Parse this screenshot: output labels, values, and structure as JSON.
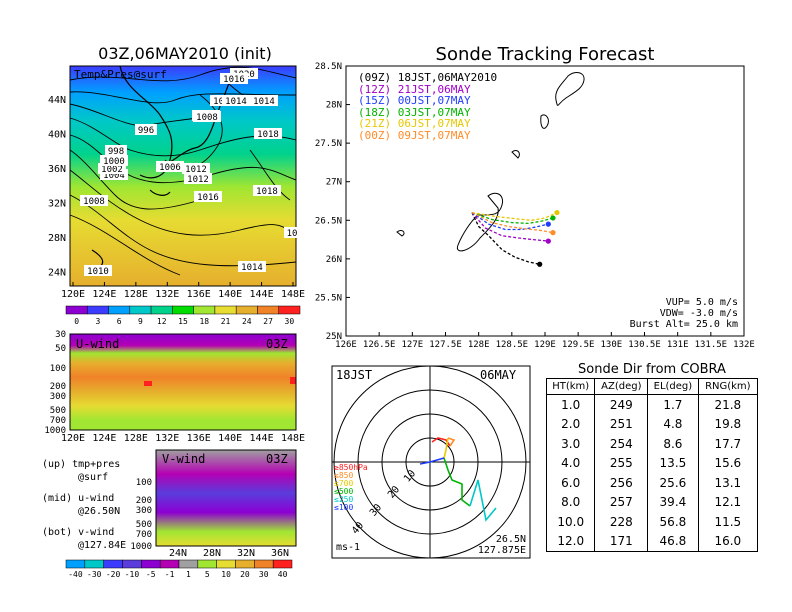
{
  "left_panel": {
    "title": "03Z,06MAY2010 (init)",
    "map_label": "Temp&Pres@surf",
    "x_ticks": [
      "120E",
      "124E",
      "128E",
      "132E",
      "136E",
      "140E",
      "144E",
      "148E"
    ],
    "y_ticks": [
      "44N",
      "40N",
      "36N",
      "32N",
      "28N",
      "24N"
    ],
    "isobar_labels": [
      "1020",
      "1016",
      "1016",
      "1014",
      "1014",
      "1012",
      "1012",
      "1008",
      "1008",
      "1008",
      "1018",
      "1018",
      "1016",
      "1006",
      "1004",
      "1002",
      "1000",
      "998",
      "996",
      "1010",
      "1014",
      "10"
    ],
    "temp_colorbar": [
      "0",
      "3",
      "6",
      "9",
      "12",
      "15",
      "18",
      "21",
      "24",
      "27",
      "30"
    ],
    "temp_colors": [
      "#8c00d2",
      "#3c3cff",
      "#00a0ff",
      "#00c8c8",
      "#00d28c",
      "#00dc00",
      "#a0e632",
      "#e6dc32",
      "#e6af2d",
      "#f08228",
      "#ff2020"
    ],
    "u_panel": {
      "label": "U-wind",
      "time": "03Z",
      "y_ticks": [
        "30",
        "50",
        "100",
        "200",
        "300",
        "500",
        "700",
        "1000"
      ],
      "x_ticks": [
        "120E",
        "124E",
        "128E",
        "132E",
        "136E",
        "140E",
        "144E",
        "148E"
      ]
    },
    "v_panel": {
      "label": "V-wind",
      "time": "03Z",
      "y_ticks": [
        "100",
        "200",
        "300",
        "500",
        "700",
        "1000"
      ],
      "x_ticks": [
        "24N",
        "28N",
        "32N",
        "36N"
      ]
    },
    "notes": [
      "(up) tmp+pres",
      "@surf",
      "(mid) u-wind",
      "@26.50N",
      "(bot) v-wind",
      "@127.84E"
    ],
    "wind_colorbar": [
      "-40",
      "-30",
      "-20",
      "-10",
      "-5",
      "-1",
      "1",
      "5",
      "10",
      "20",
      "30",
      "40"
    ],
    "wind_colors": [
      "#00a0ff",
      "#00c8c8",
      "#3c3cff",
      "#5a3cdc",
      "#8c00d2",
      "#b400b4",
      "#a0a0a0",
      "#a0e632",
      "#e6dc32",
      "#e6af2d",
      "#f08228",
      "#ff2020"
    ]
  },
  "tracking": {
    "title": "Sonde Tracking Forecast",
    "x_ticks": [
      "126E",
      "126.5E",
      "127E",
      "127.5E",
      "128E",
      "128.5E",
      "129E",
      "129.5E",
      "130E",
      "130.5E",
      "131E",
      "131.5E",
      "132E"
    ],
    "y_ticks": [
      "28.5N",
      "28N",
      "27.5N",
      "27N",
      "26.5N",
      "26N",
      "25.5N",
      "25N"
    ],
    "legend": [
      {
        "label": "(09Z) 18JST,06MAY2010",
        "color": "#000000"
      },
      {
        "label": "(12Z) 21JST,06MAY",
        "color": "#a000c8"
      },
      {
        "label": "(15Z) 00JST,07MAY",
        "color": "#1e3cff"
      },
      {
        "label": "(18Z) 03JST,07MAY",
        "color": "#00b400"
      },
      {
        "label": "(21Z) 06JST,07MAY",
        "color": "#e6c800"
      },
      {
        "label": "(00Z) 09JST,07MAY",
        "color": "#ff8c28"
      }
    ],
    "params": [
      "VUP= 5.0 m/s",
      "VDW= -3.0 m/s",
      "Burst Alt= 25.0 km"
    ]
  },
  "hodograph": {
    "time": "18JST",
    "date": "06MAY",
    "ring_labels": [
      "10",
      "20",
      "30",
      "40"
    ],
    "levels": [
      {
        "label": "≥850hPa",
        "color": "#ff2020"
      },
      {
        "label": "≤850",
        "color": "#ff8c28"
      },
      {
        "label": "≤700",
        "color": "#e6c800"
      },
      {
        "label": "≤500",
        "color": "#00b400"
      },
      {
        "label": "≤250",
        "color": "#00c8c8"
      },
      {
        "label": "≤100",
        "color": "#1e3cff"
      }
    ],
    "unit": "ms-1",
    "lat": "26.5N",
    "lon": "127.875E"
  },
  "cobra": {
    "title": "Sonde Dir from COBRA",
    "headers": [
      "HT(km)",
      "AZ(deg)",
      "EL(deg)",
      "RNG(km)"
    ],
    "rows": [
      [
        "1.0",
        "249",
        "1.7",
        "21.8"
      ],
      [
        "2.0",
        "251",
        "4.8",
        "19.8"
      ],
      [
        "3.0",
        "254",
        "8.6",
        "17.7"
      ],
      [
        "4.0",
        "255",
        "13.5",
        "15.6"
      ],
      [
        "6.0",
        "256",
        "25.6",
        "13.1"
      ],
      [
        "8.0",
        "257",
        "39.4",
        "12.1"
      ],
      [
        "10.0",
        "228",
        "56.8",
        "11.5"
      ],
      [
        "12.0",
        "171",
        "46.8",
        "16.0"
      ]
    ]
  },
  "chart_data": [
    {
      "type": "line",
      "title": "Sonde Tracking Forecast",
      "xlim": [
        126,
        132
      ],
      "ylim": [
        25,
        28.5
      ],
      "series": [
        {
          "name": "(09Z) 18JST,06MAY2010",
          "color": "#000000",
          "points": [
            [
              127.9,
              26.6
            ],
            [
              128.0,
              26.42
            ],
            [
              128.15,
              26.3
            ],
            [
              128.35,
              26.12
            ],
            [
              128.55,
              26.02
            ],
            [
              128.75,
              25.96
            ],
            [
              128.92,
              25.93
            ]
          ]
        },
        {
          "name": "(12Z) 21JST,06MAY",
          "color": "#a000c8",
          "points": [
            [
              127.9,
              26.6
            ],
            [
              128.1,
              26.4
            ],
            [
              128.35,
              26.3
            ],
            [
              128.6,
              26.27
            ],
            [
              128.82,
              26.25
            ],
            [
              129.05,
              26.23
            ]
          ]
        },
        {
          "name": "(15Z) 00JST,07MAY",
          "color": "#1e3cff",
          "points": [
            [
              127.9,
              26.6
            ],
            [
              128.15,
              26.45
            ],
            [
              128.4,
              26.38
            ],
            [
              128.65,
              26.38
            ],
            [
              128.85,
              26.41
            ],
            [
              129.05,
              26.45
            ]
          ]
        },
        {
          "name": "(18Z) 03JST,07MAY",
          "color": "#00b400",
          "points": [
            [
              127.9,
              26.6
            ],
            [
              128.2,
              26.51
            ],
            [
              128.5,
              26.47
            ],
            [
              128.75,
              26.46
            ],
            [
              128.95,
              26.49
            ],
            [
              129.12,
              26.53
            ]
          ]
        },
        {
          "name": "(21Z) 06JST,07MAY",
          "color": "#e6c800",
          "points": [
            [
              127.9,
              26.6
            ],
            [
              128.25,
              26.55
            ],
            [
              128.55,
              26.52
            ],
            [
              128.8,
              26.5
            ],
            [
              129.0,
              26.53
            ],
            [
              129.18,
              26.6
            ]
          ]
        },
        {
          "name": "(00Z) 09JST,07MAY",
          "color": "#ff8c28",
          "points": [
            [
              127.9,
              26.6
            ],
            [
              128.2,
              26.47
            ],
            [
              128.45,
              26.42
            ],
            [
              128.7,
              26.39
            ],
            [
              128.92,
              26.37
            ],
            [
              129.12,
              26.34
            ]
          ]
        }
      ]
    },
    {
      "type": "table",
      "title": "Sonde Dir from COBRA",
      "columns": [
        "HT(km)",
        "AZ(deg)",
        "EL(deg)",
        "RNG(km)"
      ],
      "rows": [
        [
          1.0,
          249,
          1.7,
          21.8
        ],
        [
          2.0,
          251,
          4.8,
          19.8
        ],
        [
          3.0,
          254,
          8.6,
          17.7
        ],
        [
          4.0,
          255,
          13.5,
          15.6
        ],
        [
          6.0,
          256,
          25.6,
          13.1
        ],
        [
          8.0,
          257,
          39.4,
          12.1
        ],
        [
          10.0,
          228,
          56.8,
          11.5
        ],
        [
          12.0,
          171,
          46.8,
          16.0
        ]
      ]
    }
  ]
}
